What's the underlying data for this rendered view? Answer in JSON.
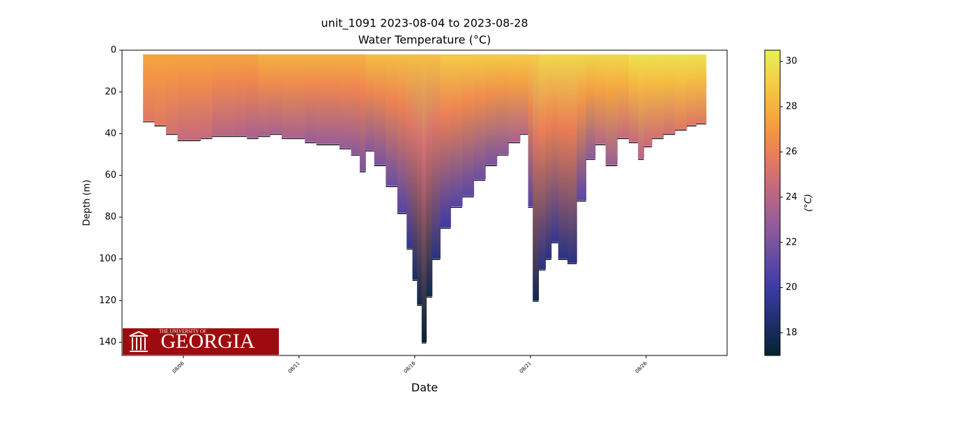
{
  "chart_data": {
    "type": "profiles",
    "title": "unit_1091 2023-08-04 to 2023-08-28",
    "subtitle": "Water Temperature (°C)",
    "xlabel": "Date",
    "ylabel": "Depth (m)",
    "colorbar_label": "(°C)",
    "xlim": [
      3.35,
      29.5
    ],
    "xticks": [
      {
        "value": 6,
        "label": "08/06"
      },
      {
        "value": 11,
        "label": "08/11"
      },
      {
        "value": 16,
        "label": "08/16"
      },
      {
        "value": 21,
        "label": "08/21"
      },
      {
        "value": 26,
        "label": "08/26"
      }
    ],
    "ylim": [
      146.3,
      0
    ],
    "yticks": [
      0,
      20,
      40,
      60,
      80,
      100,
      120,
      140
    ],
    "clim": [
      17,
      30.5
    ],
    "cticks": [
      18,
      20,
      22,
      24,
      26,
      28,
      30
    ],
    "colormap": [
      "#03232e",
      "#1f2f6e",
      "#3d3aa6",
      "#6a4ea3",
      "#9a5e96",
      "#c56a7d",
      "#ec7f55",
      "#f5a53e",
      "#f4cc44",
      "#e8f057"
    ],
    "x": [
      4.5,
      5,
      5.5,
      6,
      6.5,
      7,
      7.5,
      8,
      8.5,
      9,
      9.5,
      10,
      10.5,
      11,
      11.5,
      12,
      12.5,
      13,
      13.5,
      13.75,
      14,
      14.5,
      15,
      15.5,
      15.8,
      16,
      16.2,
      16.4,
      16.6,
      16.9,
      17.3,
      17.8,
      18.3,
      18.8,
      19.3,
      19.8,
      20.3,
      20.8,
      21,
      21.2,
      21.5,
      21.8,
      22,
      22.4,
      22.8,
      23.2,
      23.6,
      24,
      24.5,
      25,
      25.5,
      25.8,
      26,
      26.5,
      27,
      27.5,
      28,
      28.35
    ],
    "max_depth": [
      34,
      36,
      40,
      43,
      43,
      42,
      41,
      41,
      41,
      42,
      41,
      40,
      42,
      42,
      44,
      45,
      45,
      47,
      50,
      58,
      48,
      55,
      65,
      78,
      95,
      110,
      122,
      140,
      118,
      100,
      85,
      75,
      70,
      62,
      55,
      50,
      44,
      40,
      75,
      120,
      105,
      100,
      92,
      100,
      102,
      72,
      52,
      45,
      55,
      42,
      44,
      52,
      46,
      42,
      40,
      38,
      36,
      35
    ],
    "surface_temp": [
      27.5,
      27.5,
      27.5,
      27.5,
      27.5,
      27.5,
      27.5,
      27.5,
      27.5,
      27.5,
      28,
      28,
      28,
      28,
      28,
      28,
      28,
      28,
      28,
      28,
      28.5,
      28.5,
      28.5,
      28.5,
      28.5,
      28.5,
      28.5,
      28.5,
      28.5,
      28.5,
      29,
      29,
      29,
      29,
      29,
      29,
      29,
      29,
      29,
      29,
      29.5,
      29.5,
      29.5,
      29.5,
      29.5,
      29.5,
      29.5,
      29.5,
      29.5,
      29.5,
      30,
      30,
      30,
      30,
      30,
      30,
      30,
      30
    ],
    "bottom_temp": [
      25.5,
      25.5,
      25,
      24.5,
      24.5,
      24.5,
      24,
      24,
      23.8,
      23.5,
      23.5,
      23.5,
      23.5,
      23.5,
      23,
      23,
      23,
      22.8,
      22.5,
      22,
      22.5,
      22,
      21.5,
      20.8,
      19.5,
      18.3,
      17.8,
      17.2,
      17.8,
      19,
      20,
      20.8,
      21,
      21.5,
      22,
      22.5,
      23.5,
      24,
      20.8,
      17.8,
      19,
      19,
      19.5,
      19,
      19,
      21,
      22.5,
      24,
      23,
      24.5,
      24.5,
      24,
      24.5,
      25,
      25,
      25.5,
      25.5,
      25.5
    ]
  },
  "logo": {
    "line1": "THE UNIVERSITY OF",
    "line2": "GEORGIA"
  }
}
